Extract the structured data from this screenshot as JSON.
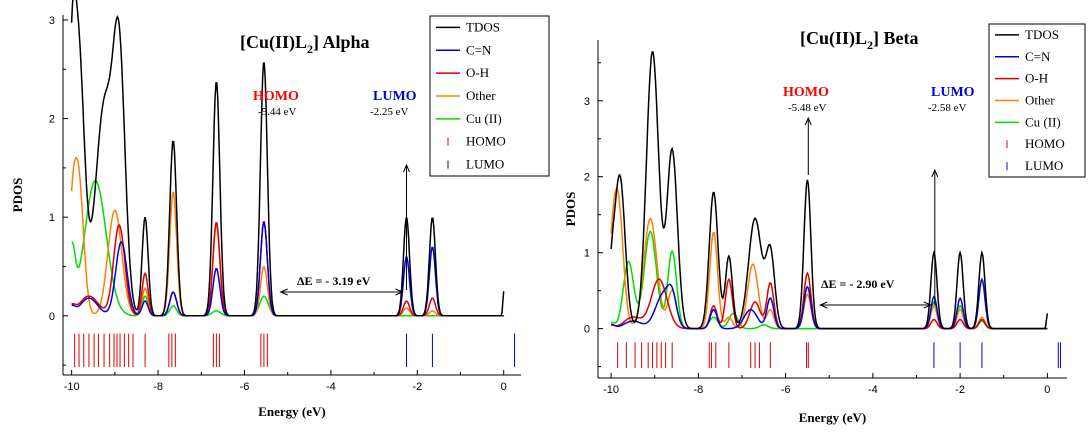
{
  "colors": {
    "TDOS": "#000000",
    "C=N": "#0000dd",
    "O-H": "#dd0000",
    "Other": "#ff8000",
    "Cu (II)": "#00dd00",
    "HOMO": "#dd0000",
    "LUMO": "#0000dd"
  },
  "chart_data": [
    {
      "type": "line",
      "title": "[Cu(II)L2] Alpha",
      "title_main": "[Cu(II)L",
      "title_sub": "2",
      "title_tail": "] Alpha",
      "xlabel": "Energy (eV)",
      "ylabel": "PDOS",
      "xlim": [
        -10.2,
        0.4
      ],
      "ylim": [
        -0.6,
        3.05
      ],
      "xticks": [
        -10,
        -8,
        -6,
        -4,
        -2,
        0
      ],
      "yticks": [
        0,
        1,
        2,
        3
      ],
      "legend": [
        "TDOS",
        "C=N",
        "O-H",
        "Other",
        "Cu (II)",
        "HOMO",
        "LUMO"
      ],
      "legend_position": "top-right",
      "annotations": {
        "homo_label": "HOMO",
        "homo_energy": "-5.44 eV",
        "lumo_label": "LUMO",
        "lumo_energy": "-2.25 eV",
        "gap": "ΔE = - 3.19 eV",
        "homo_x": -5.44,
        "lumo_x": -2.25
      },
      "series": [
        {
          "name": "TDOS",
          "peaks": [
            [
              -9.85,
              2.75,
              0.14
            ],
            [
              -9.25,
              2.1,
              0.2
            ],
            [
              -8.9,
              2.5,
              0.14
            ],
            [
              -8.3,
              1.0,
              0.07
            ],
            [
              -7.65,
              1.78,
              0.08
            ],
            [
              -6.65,
              2.38,
              0.08
            ],
            [
              -5.55,
              2.58,
              0.08
            ],
            [
              -2.25,
              1.0,
              0.07
            ],
            [
              -1.65,
              1.0,
              0.07
            ]
          ],
          "tail": [
            -10.0,
            1.42
          ],
          "end": [
            0.0,
            0.25
          ]
        },
        {
          "name": "C=N",
          "peaks": [
            [
              -9.6,
              0.18,
              0.2
            ],
            [
              -8.85,
              0.75,
              0.13
            ],
            [
              -8.3,
              0.15,
              0.07
            ],
            [
              -7.65,
              0.24,
              0.08
            ],
            [
              -6.65,
              0.48,
              0.08
            ],
            [
              -5.55,
              0.95,
              0.08
            ],
            [
              -2.25,
              0.6,
              0.07
            ],
            [
              -1.65,
              0.7,
              0.07
            ]
          ],
          "tail": [
            -10.0,
            0.08
          ]
        },
        {
          "name": "O-H",
          "peaks": [
            [
              -9.6,
              0.2,
              0.22
            ],
            [
              -8.9,
              0.92,
              0.13
            ],
            [
              -8.3,
              0.43,
              0.07
            ],
            [
              -7.65,
              0.24,
              0.08
            ],
            [
              -6.65,
              0.95,
              0.08
            ],
            [
              -5.55,
              0.96,
              0.08
            ],
            [
              -2.25,
              0.15,
              0.07
            ],
            [
              -1.65,
              0.18,
              0.07
            ]
          ],
          "tail": [
            -10.0,
            0.08
          ]
        },
        {
          "name": "Other",
          "peaks": [
            [
              -9.85,
              1.45,
              0.12
            ],
            [
              -9.0,
              1.07,
              0.16
            ],
            [
              -8.3,
              0.28,
              0.07
            ],
            [
              -7.65,
              1.26,
              0.08
            ],
            [
              -6.65,
              0.92,
              0.08
            ],
            [
              -5.55,
              0.5,
              0.08
            ],
            [
              -2.25,
              0.08,
              0.07
            ],
            [
              -1.65,
              0.05,
              0.07
            ]
          ],
          "tail": [
            -10.0,
            0.6
          ]
        },
        {
          "name": "Cu (II)",
          "peaks": [
            [
              -9.45,
              1.37,
              0.25
            ],
            [
              -8.3,
              0.2,
              0.07
            ],
            [
              -7.65,
              0.1,
              0.08
            ],
            [
              -6.65,
              0.05,
              0.1
            ],
            [
              -5.55,
              0.2,
              0.1
            ]
          ],
          "tail": [
            -10.0,
            0.62
          ]
        }
      ],
      "homo_sticks": [
        -9.93,
        -9.83,
        -9.72,
        -9.6,
        -9.48,
        -9.38,
        -9.25,
        -9.12,
        -9.02,
        -8.95,
        -8.88,
        -8.78,
        -8.68,
        -8.58,
        -8.3,
        -7.75,
        -7.68,
        -7.6,
        -6.72,
        -6.65,
        -6.58,
        -5.62,
        -5.55,
        -5.47
      ],
      "lumo_sticks": [
        -2.25,
        -1.65,
        0.25
      ]
    },
    {
      "type": "line",
      "title": "[Cu(II)L2] Beta",
      "title_main": "[Cu(II)L",
      "title_sub": "2",
      "title_tail": "] Beta",
      "xlabel": "Energy (eV)",
      "ylabel": "PDOS",
      "xlim": [
        -10.3,
        0.45
      ],
      "ylim": [
        -0.65,
        3.8
      ],
      "xticks": [
        -10,
        -8,
        -6,
        -4,
        -2,
        0
      ],
      "yticks": [
        0,
        1,
        2,
        3
      ],
      "legend": [
        "TDOS",
        "C=N",
        "O-H",
        "Other",
        "Cu (II)",
        "HOMO",
        "LUMO"
      ],
      "legend_position": "top-right",
      "annotations": {
        "homo_label": "HOMO",
        "homo_energy": "-5.48 eV",
        "lumo_label": "LUMO",
        "lumo_energy": "-2.58 eV",
        "gap": "ΔE = - 2.90 eV",
        "homo_x": -5.48,
        "lumo_x": -2.58
      },
      "series": [
        {
          "name": "TDOS",
          "peaks": [
            [
              -9.8,
              2.0,
              0.12
            ],
            [
              -9.05,
              3.65,
              0.14
            ],
            [
              -8.6,
              2.35,
              0.12
            ],
            [
              -7.65,
              1.8,
              0.1
            ],
            [
              -7.3,
              0.95,
              0.08
            ],
            [
              -6.7,
              1.45,
              0.15
            ],
            [
              -6.35,
              1.0,
              0.1
            ],
            [
              -5.5,
              1.96,
              0.08
            ],
            [
              -2.6,
              1.0,
              0.07
            ],
            [
              -2.0,
              1.0,
              0.07
            ],
            [
              -1.5,
              1.0,
              0.07
            ]
          ],
          "tail": [
            -10.0,
            0.55
          ],
          "end": [
            0.0,
            0.2
          ]
        },
        {
          "name": "C=N",
          "peaks": [
            [
              -9.5,
              0.1,
              0.2
            ],
            [
              -8.8,
              0.45,
              0.18
            ],
            [
              -8.6,
              0.3,
              0.1
            ],
            [
              -7.65,
              0.25,
              0.08
            ],
            [
              -6.8,
              0.25,
              0.15
            ],
            [
              -6.35,
              0.4,
              0.08
            ],
            [
              -5.5,
              0.55,
              0.08
            ],
            [
              -2.6,
              0.42,
              0.07
            ],
            [
              -2.0,
              0.4,
              0.07
            ],
            [
              -1.5,
              0.65,
              0.07
            ]
          ],
          "tail": [
            -10.0,
            0.05
          ]
        },
        {
          "name": "O-H",
          "peaks": [
            [
              -9.5,
              0.15,
              0.2
            ],
            [
              -8.9,
              0.65,
              0.18
            ],
            [
              -7.65,
              0.3,
              0.08
            ],
            [
              -7.3,
              0.65,
              0.08
            ],
            [
              -6.7,
              0.35,
              0.12
            ],
            [
              -6.35,
              0.6,
              0.08
            ],
            [
              -5.5,
              0.73,
              0.08
            ],
            [
              -2.6,
              0.12,
              0.07
            ],
            [
              -2.0,
              0.12,
              0.07
            ],
            [
              -1.5,
              0.12,
              0.07
            ]
          ],
          "tail": [
            -10.0,
            0.04
          ]
        },
        {
          "name": "Other",
          "peaks": [
            [
              -9.85,
              1.75,
              0.12
            ],
            [
              -9.1,
              1.45,
              0.15
            ],
            [
              -8.6,
              0.5,
              0.1
            ],
            [
              -7.65,
              1.27,
              0.09
            ],
            [
              -7.3,
              0.15,
              0.08
            ],
            [
              -6.75,
              0.85,
              0.12
            ],
            [
              -6.35,
              0.25,
              0.08
            ],
            [
              -5.5,
              0.45,
              0.08
            ],
            [
              -2.6,
              0.3,
              0.07
            ],
            [
              -2.0,
              0.25,
              0.07
            ],
            [
              -1.5,
              0.15,
              0.07
            ]
          ],
          "tail": [
            -10.0,
            0.45
          ]
        },
        {
          "name": "Cu (II)",
          "peaks": [
            [
              -9.6,
              0.88,
              0.12
            ],
            [
              -9.1,
              1.28,
              0.14
            ],
            [
              -8.6,
              1.02,
              0.1
            ],
            [
              -7.65,
              0.15,
              0.1
            ],
            [
              -7.2,
              0.2,
              0.1
            ],
            [
              -6.5,
              0.05,
              0.1
            ],
            [
              -2.6,
              0.35,
              0.07
            ],
            [
              -2.0,
              0.3,
              0.07
            ],
            [
              -1.5,
              0.1,
              0.07
            ]
          ],
          "tail": [
            -10.0,
            0.08
          ]
        }
      ],
      "homo_sticks": [
        -9.85,
        -9.65,
        -9.45,
        -9.3,
        -9.15,
        -9.05,
        -8.95,
        -8.85,
        -8.75,
        -8.6,
        -7.75,
        -7.7,
        -7.6,
        -7.3,
        -6.8,
        -6.7,
        -6.6,
        -6.35,
        -5.52,
        -5.48
      ],
      "lumo_sticks": [
        -2.6,
        -2.0,
        -1.5,
        0.25,
        0.3
      ]
    }
  ]
}
